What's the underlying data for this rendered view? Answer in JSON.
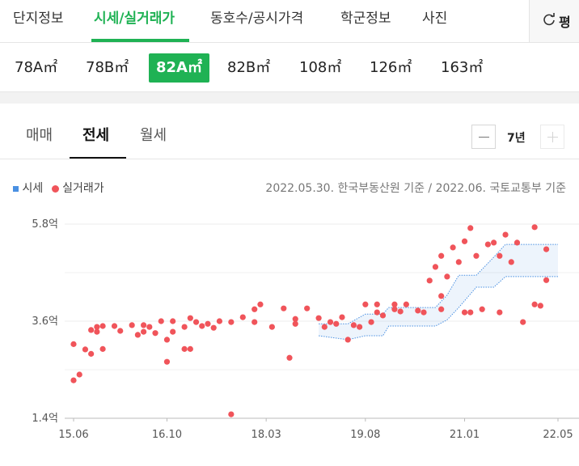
{
  "tabs": [
    "단지정보",
    "시세/실거래가",
    "동호수/공시가격",
    "학군정보",
    "사진"
  ],
  "unit_button": "평",
  "areas": [
    "78A㎡",
    "78B㎡",
    "82A㎡",
    "82B㎡",
    "108㎡",
    "126㎡",
    "163㎡"
  ],
  "deal_tabs": [
    "매매",
    "전세",
    "월세"
  ],
  "period": "7년",
  "note": "2022.05.30. 한국부동산원 기준 / 2022.06. 국토교통부 기준",
  "chart_data": {
    "type": "scatter",
    "ylim": [
      1.4,
      5.8
    ],
    "yticks": [
      {
        "value": 5.8,
        "label": "5.8억"
      },
      {
        "value": 3.6,
        "label": "3.6억"
      },
      {
        "value": 1.4,
        "label": "1.4억"
      }
    ],
    "minor_yticks": [
      4.7,
      2.5
    ],
    "xlim": [
      "15.06",
      "22.05"
    ],
    "xticks": [
      "15.06",
      "16.10",
      "18.03",
      "19.08",
      "21.01",
      "22.05"
    ],
    "grid": true,
    "band": {
      "name": "시세",
      "color": "#4a90e2",
      "x": [
        "18.12",
        "19.05",
        "19.08",
        "19.11",
        "19.12",
        "20.08",
        "20.10",
        "20.12",
        "21.03",
        "21.06",
        "21.08",
        "22.05"
      ],
      "high": [
        3.54,
        3.54,
        3.76,
        3.76,
        3.91,
        3.91,
        4.19,
        4.64,
        4.64,
        5.05,
        5.34,
        5.34
      ],
      "low": [
        3.27,
        3.18,
        3.27,
        3.27,
        3.49,
        3.49,
        3.63,
        3.91,
        4.37,
        4.37,
        4.61,
        4.61
      ]
    },
    "series": [
      {
        "name": "실거래가",
        "color": "#f0545a",
        "x": [
          "15.06",
          "15.07",
          "15.06",
          "15.08",
          "15.09",
          "15.09",
          "15.10",
          "15.10",
          "15.11",
          "15.11",
          "16.01",
          "16.02",
          "16.04",
          "16.05",
          "16.06",
          "16.06",
          "16.07",
          "16.08",
          "16.09",
          "16.10",
          "16.10",
          "16.11",
          "16.11",
          "17.01",
          "17.01",
          "17.02",
          "17.02",
          "17.03",
          "17.04",
          "17.05",
          "17.06",
          "17.07",
          "17.09",
          "17.09",
          "17.11",
          "18.01",
          "18.02",
          "18.01",
          "18.04",
          "18.06",
          "18.07",
          "18.08",
          "18.08",
          "18.10",
          "18.12",
          "19.01",
          "19.02",
          "19.03",
          "19.04",
          "19.05",
          "19.06",
          "19.07",
          "19.08",
          "19.09",
          "19.10",
          "19.10",
          "19.11",
          "20.01",
          "20.01",
          "20.02",
          "20.03",
          "20.05",
          "20.06",
          "20.07",
          "20.08",
          "20.09",
          "20.09",
          "20.09",
          "20.10",
          "20.11",
          "20.12",
          "21.01",
          "21.01",
          "21.02",
          "21.02",
          "21.03",
          "21.04",
          "21.05",
          "21.06",
          "21.07",
          "21.07",
          "21.08",
          "21.09",
          "21.10",
          "21.11",
          "22.01",
          "22.01",
          "22.02",
          "22.03",
          "22.03"
        ],
        "values": [
          2.26,
          2.39,
          3.08,
          2.96,
          2.86,
          3.4,
          3.47,
          3.36,
          2.97,
          3.49,
          3.49,
          3.38,
          3.51,
          3.29,
          3.51,
          3.36,
          3.47,
          3.33,
          3.6,
          2.68,
          3.18,
          3.6,
          3.36,
          3.47,
          2.97,
          2.97,
          3.67,
          3.58,
          3.49,
          3.54,
          3.45,
          3.6,
          1.49,
          3.58,
          3.69,
          3.87,
          3.98,
          3.58,
          3.47,
          3.89,
          2.77,
          3.54,
          3.65,
          3.89,
          3.67,
          3.47,
          3.58,
          3.54,
          3.69,
          3.18,
          3.51,
          3.47,
          3.98,
          3.58,
          3.8,
          3.98,
          3.73,
          3.87,
          3.98,
          3.82,
          3.98,
          3.84,
          3.8,
          4.52,
          4.83,
          3.87,
          4.17,
          5.08,
          4.61,
          5.27,
          4.94,
          5.41,
          3.8,
          5.71,
          3.8,
          5.08,
          3.87,
          5.34,
          5.38,
          3.8,
          5.08,
          5.56,
          4.94,
          5.38,
          3.58,
          5.73,
          3.98,
          3.95,
          5.23,
          4.53
        ]
      }
    ]
  }
}
